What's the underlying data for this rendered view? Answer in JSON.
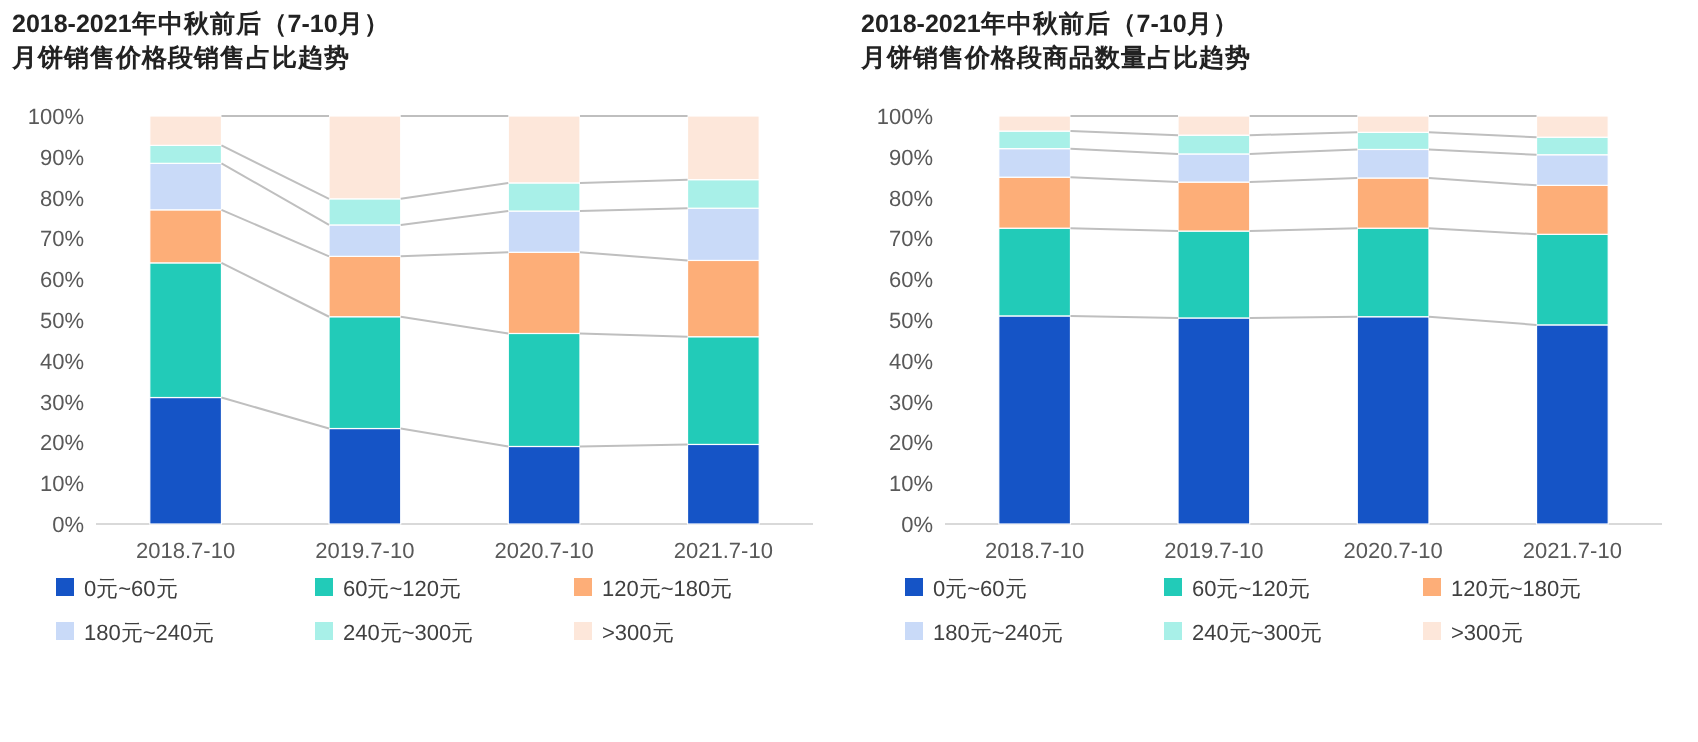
{
  "chart_data": [
    {
      "type": "bar",
      "stacked": true,
      "title": "2018-2021年中秋前后（7-10月）",
      "subtitle": "月饼销售价格段销售占比趋势",
      "categories": [
        "2018.7-10",
        "2019.7-10",
        "2020.7-10",
        "2021.7-10"
      ],
      "ylim": [
        0,
        100
      ],
      "yticks": [
        {
          "value": 0,
          "label": "0%"
        },
        {
          "value": 10,
          "label": "10%"
        },
        {
          "value": 20,
          "label": "20%"
        },
        {
          "value": 30,
          "label": "30%"
        },
        {
          "value": 40,
          "label": "40%"
        },
        {
          "value": 50,
          "label": "50%"
        },
        {
          "value": 60,
          "label": "60%"
        },
        {
          "value": 70,
          "label": "70%"
        },
        {
          "value": 80,
          "label": "80%"
        },
        {
          "value": 90,
          "label": "90%"
        },
        {
          "value": 100,
          "label": "100%"
        }
      ],
      "grid": false,
      "legend": "bottom",
      "series": [
        {
          "name": "0元~60元",
          "color": "#1554c6",
          "values": [
            31,
            23.4,
            19,
            19.5
          ]
        },
        {
          "name": "60元~120元",
          "color": "#22cbb8",
          "values": [
            33,
            27.4,
            27.7,
            26.4
          ]
        },
        {
          "name": "120元~180元",
          "color": "#fdae78",
          "values": [
            13,
            14.8,
            19.9,
            18.7
          ]
        },
        {
          "name": "180元~240元",
          "color": "#c9daf8",
          "values": [
            11.4,
            7.7,
            10.1,
            12.8
          ]
        },
        {
          "name": "240元~300元",
          "color": "#a8f0e8",
          "values": [
            4.4,
            6.4,
            6.9,
            7
          ]
        },
        {
          "name": ">300元",
          "color": "#fde7da",
          "values": [
            7.2,
            20.3,
            16.4,
            15.6
          ]
        }
      ]
    },
    {
      "type": "bar",
      "stacked": true,
      "title": "2018-2021年中秋前后（7-10月）",
      "subtitle": "月饼销售价格段商品数量占比趋势",
      "categories": [
        "2018.7-10",
        "2019.7-10",
        "2020.7-10",
        "2021.7-10"
      ],
      "ylim": [
        0,
        100
      ],
      "yticks": [
        {
          "value": 0,
          "label": "0%"
        },
        {
          "value": 10,
          "label": "10%"
        },
        {
          "value": 20,
          "label": "20%"
        },
        {
          "value": 30,
          "label": "30%"
        },
        {
          "value": 40,
          "label": "40%"
        },
        {
          "value": 50,
          "label": "50%"
        },
        {
          "value": 60,
          "label": "60%"
        },
        {
          "value": 70,
          "label": "70%"
        },
        {
          "value": 80,
          "label": "80%"
        },
        {
          "value": 90,
          "label": "90%"
        },
        {
          "value": 100,
          "label": "100%"
        }
      ],
      "grid": false,
      "legend": "bottom",
      "series": [
        {
          "name": "0元~60元",
          "color": "#1554c6",
          "values": [
            51,
            50.5,
            50.8,
            48.8
          ]
        },
        {
          "name": "60元~120元",
          "color": "#22cbb8",
          "values": [
            21.5,
            21.3,
            21.7,
            22.2
          ]
        },
        {
          "name": "120元~180元",
          "color": "#fdae78",
          "values": [
            12.5,
            12,
            12.3,
            12
          ]
        },
        {
          "name": "180元~240元",
          "color": "#c9daf8",
          "values": [
            7,
            6.9,
            7,
            7.5
          ]
        },
        {
          "name": "240元~300元",
          "color": "#a8f0e8",
          "values": [
            4.3,
            4.6,
            4.2,
            4.3
          ]
        },
        {
          "name": ">300元",
          "color": "#fde7da",
          "values": [
            3.7,
            4.7,
            4,
            5.2
          ]
        }
      ]
    }
  ]
}
